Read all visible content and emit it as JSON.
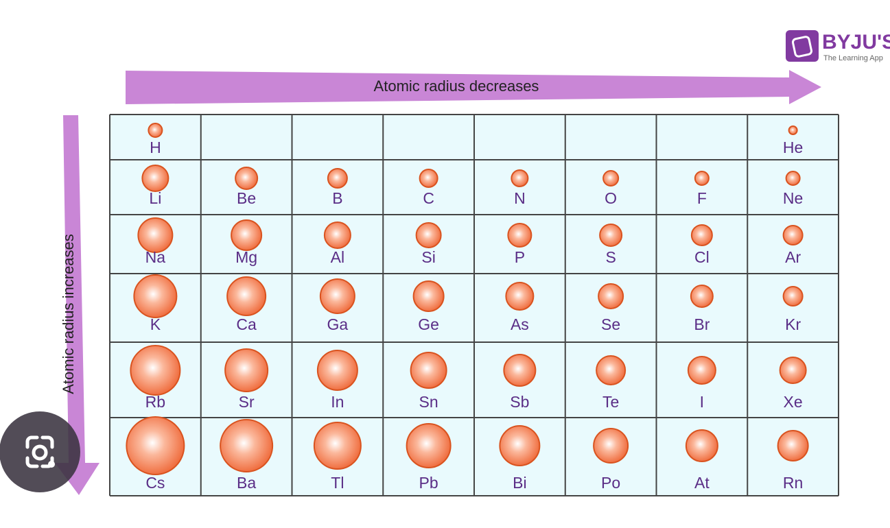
{
  "logo": {
    "name": "BYJU'S",
    "tagline": "The Learning App"
  },
  "arrows": {
    "horizontal": "Atomic radius decreases",
    "vertical": "Atomic radius increases"
  },
  "table": {
    "rows": [
      [
        "H",
        null,
        null,
        null,
        null,
        null,
        null,
        "He"
      ],
      [
        "Li",
        "Be",
        "B",
        "C",
        "N",
        "O",
        "F",
        "Ne"
      ],
      [
        "Na",
        "Mg",
        "Al",
        "Si",
        "P",
        "S",
        "Cl",
        "Ar"
      ],
      [
        "K",
        "Ca",
        "Ga",
        "Ge",
        "As",
        "Se",
        "Br",
        "Kr"
      ],
      [
        "Rb",
        "Sr",
        "In",
        "Sn",
        "Sb",
        "Te",
        "I",
        "Xe"
      ],
      [
        "Cs",
        "Ba",
        "Tl",
        "Pb",
        "Bi",
        "Po",
        "At",
        "Rn"
      ]
    ]
  }
}
